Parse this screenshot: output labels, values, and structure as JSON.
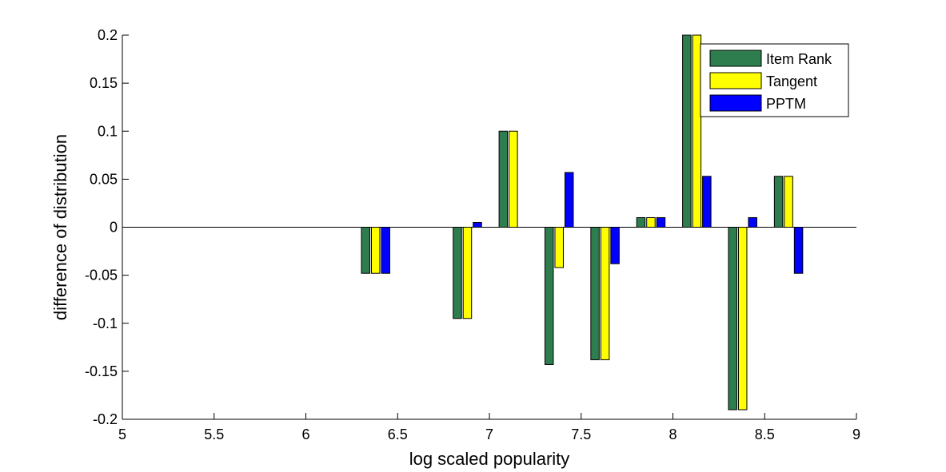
{
  "chart_data": {
    "type": "bar",
    "title": "",
    "xlabel": "log scaled popularity",
    "ylabel": "difference of distribution",
    "xlim": [
      5,
      9
    ],
    "ylim": [
      -0.2,
      0.2
    ],
    "xticks": [
      5,
      5.5,
      6,
      6.5,
      7,
      7.5,
      8,
      8.5,
      9
    ],
    "xtick_labels": [
      "5",
      "5.5",
      "6",
      "6.5",
      "7",
      "7.5",
      "8",
      "8.5",
      "9"
    ],
    "yticks": [
      -0.2,
      -0.15,
      -0.1,
      -0.05,
      0,
      0.05,
      0.1,
      0.15,
      0.2
    ],
    "ytick_labels": [
      "-0.2",
      "-0.15",
      "-0.1",
      "-0.05",
      "0",
      "0.05",
      "0.1",
      "0.15",
      "0.2"
    ],
    "grid": false,
    "legend_position": "top-right",
    "x": [
      6.38,
      6.88,
      7.13,
      7.38,
      7.63,
      7.88,
      8.13,
      8.38,
      8.63
    ],
    "series": [
      {
        "name": "Item Rank",
        "color": "#2e7d4f",
        "values": [
          -0.048,
          -0.095,
          0.1,
          -0.143,
          -0.138,
          0.01,
          0.2,
          -0.19,
          0.053
        ]
      },
      {
        "name": "Tangent",
        "color": "#ffff00",
        "values": [
          -0.048,
          -0.095,
          0.1,
          -0.042,
          -0.138,
          0.01,
          0.2,
          -0.19,
          0.053
        ]
      },
      {
        "name": "PPTM",
        "color": "#0000ff",
        "values": [
          -0.048,
          0.005,
          0,
          0.057,
          -0.038,
          0.01,
          0.053,
          0.01,
          -0.048
        ]
      }
    ]
  }
}
